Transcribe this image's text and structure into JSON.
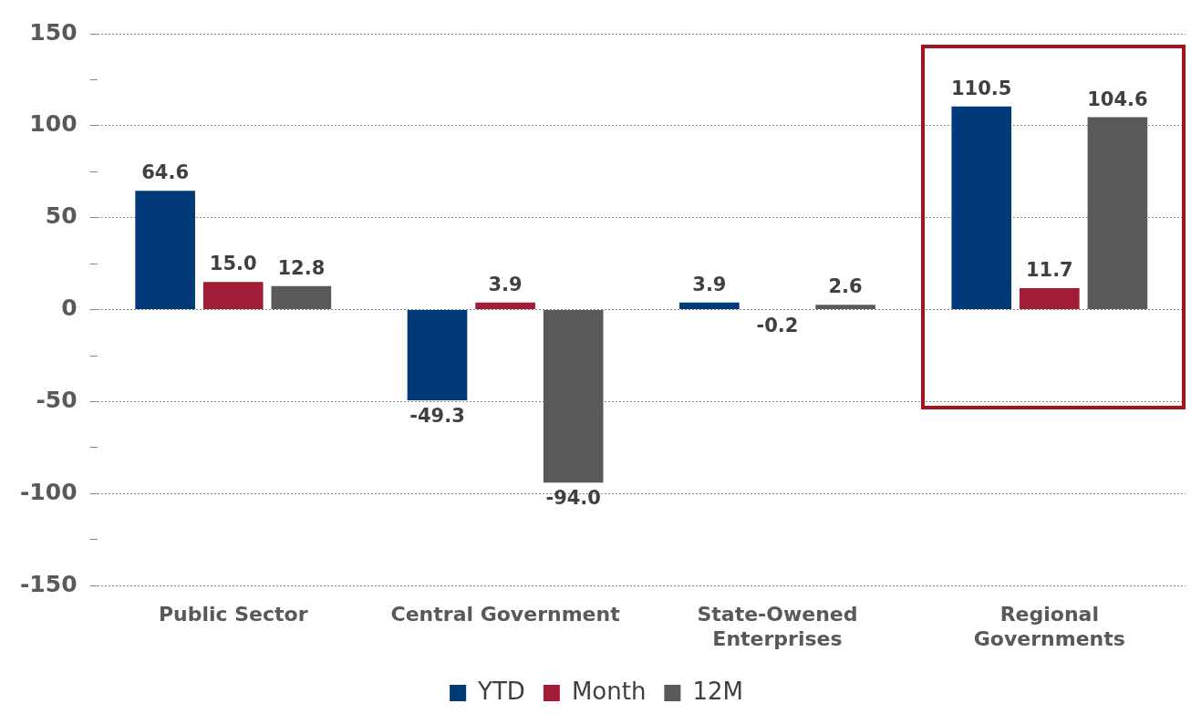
{
  "chart_data": {
    "type": "bar",
    "categories": [
      "Public Sector",
      "Central Government",
      "State-Owened Enterprises",
      "Regional Governments"
    ],
    "series": [
      {
        "name": "YTD",
        "color": "#003a78",
        "values": [
          64.6,
          -49.3,
          3.9,
          110.5
        ],
        "value_labels": [
          "64.6",
          "-49.3",
          "3.9",
          "110.5"
        ]
      },
      {
        "name": "Month",
        "color": "#a31c37",
        "values": [
          15,
          3.9,
          -0.2,
          11.7
        ],
        "value_labels": [
          "15.0",
          "3.9",
          "-0.2",
          "11.7"
        ]
      },
      {
        "name": "12M",
        "color": "#595959",
        "values": [
          12.8,
          -94,
          2.6,
          104.6
        ],
        "value_labels": [
          "12.8",
          "-94.0",
          "2.6",
          "104.6"
        ]
      }
    ],
    "ylim": [
      -150,
      150
    ],
    "yticks": [
      -150,
      {
        "value": -125,
        "label": null
      },
      -100,
      {
        "value": -75,
        "label": null
      },
      -50,
      {
        "value": -25,
        "label": null
      },
      0,
      {
        "value": 25,
        "label": null
      },
      50,
      {
        "value": 75,
        "label": null
      },
      100,
      {
        "value": 125,
        "label": null
      },
      150
    ],
    "grid": "y",
    "legend": "bottom"
  }
}
